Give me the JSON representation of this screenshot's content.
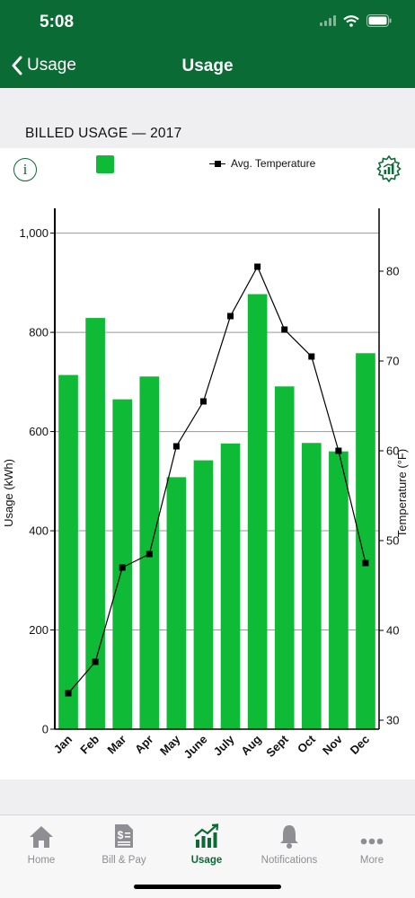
{
  "status": {
    "time": "5:08"
  },
  "nav": {
    "back_label": "Usage",
    "title": "Usage"
  },
  "section": {
    "title": "BILLED USAGE — 2017"
  },
  "legend": {
    "temperature_label": "Avg. Temperature"
  },
  "chart_data": {
    "type": "bar",
    "title": "",
    "categories": [
      "Jan",
      "Feb",
      "Mar",
      "Apr",
      "May",
      "June",
      "July",
      "Aug",
      "Sept",
      "Oct",
      "Nov",
      "Dec"
    ],
    "series": [
      {
        "values": [
          714,
          829,
          665,
          711,
          508,
          542,
          576,
          877,
          691,
          577,
          560,
          758
        ],
        "axis": "left",
        "color": "#0fba37"
      },
      {
        "name": "Avg. Temperature",
        "type": "line",
        "axis": "right",
        "values": [
          33,
          36.5,
          47,
          48.5,
          60.5,
          65.5,
          75,
          80.5,
          73.5,
          70.5,
          60,
          47.5
        ],
        "color": "#000000"
      }
    ],
    "ylabel": "Usage (kWh)",
    "ylim": [
      0,
      1050
    ],
    "yticks": [
      0,
      200,
      400,
      600,
      800,
      1000
    ],
    "ytick_labels": [
      "0",
      "200",
      "400",
      "600",
      "800",
      "1,000"
    ],
    "y2label": "Temperature (°F)",
    "y2lim": [
      29,
      87
    ],
    "y2ticks": [
      30,
      40,
      50,
      60,
      70,
      80
    ],
    "grid": true
  },
  "tabs": [
    {
      "label": "Home",
      "icon": "home-icon"
    },
    {
      "label": "Bill & Pay",
      "icon": "bill-icon"
    },
    {
      "label": "Usage",
      "icon": "usage-chart-icon",
      "active": true
    },
    {
      "label": "Notifications",
      "icon": "bell-icon"
    },
    {
      "label": "More",
      "icon": "more-dots-icon"
    }
  ],
  "colors": {
    "brand": "#0b6b34",
    "bar": "#0fba37",
    "inactive": "#8e8e93"
  }
}
